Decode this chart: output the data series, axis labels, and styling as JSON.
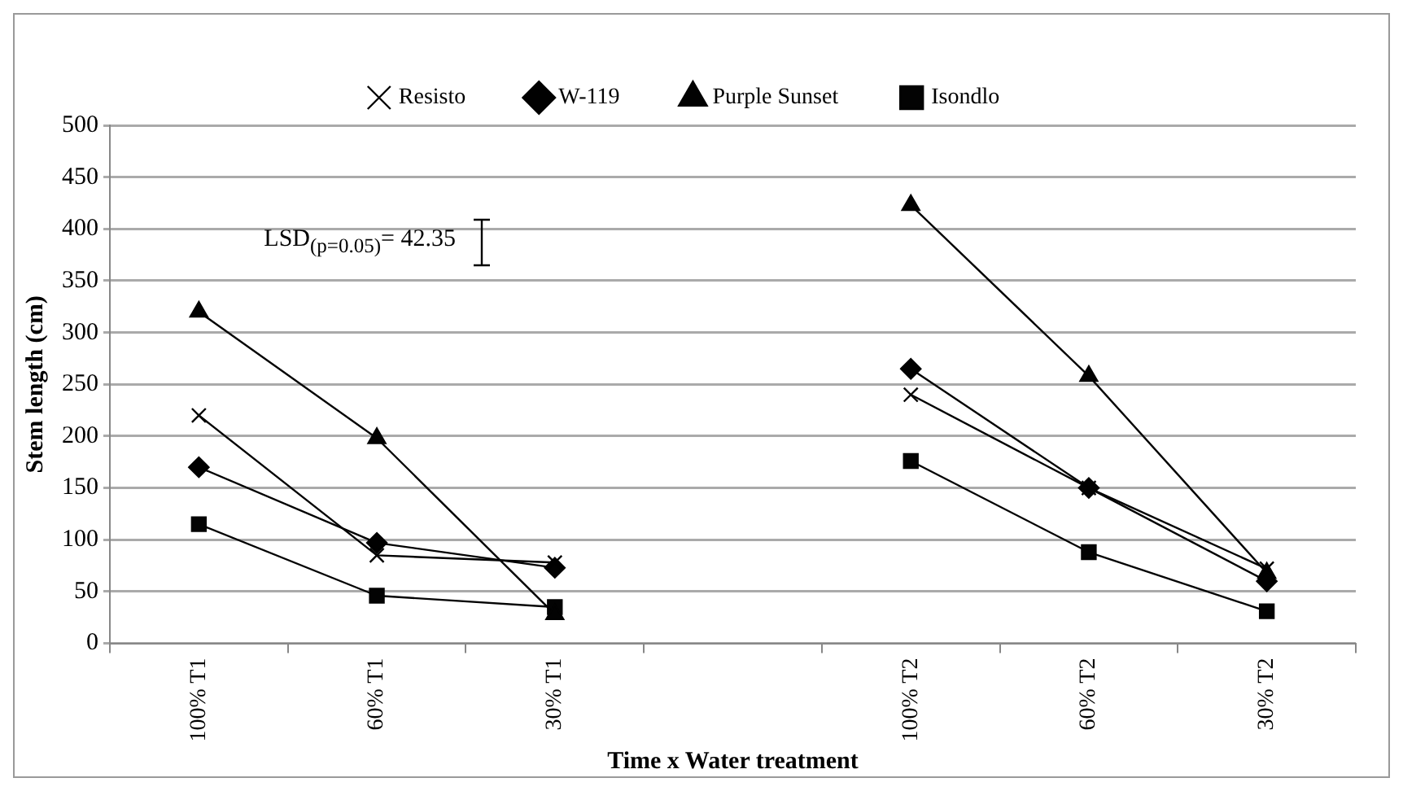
{
  "chart_data": {
    "type": "line",
    "xlabel": "Time x Water treatment",
    "ylabel": "Stem length (cm)",
    "categories": [
      "100% T1",
      "60% T1",
      "30% T1",
      null,
      "100% T2",
      "60% T2",
      "30% T2"
    ],
    "series": [
      {
        "name": "Resisto",
        "color": "#000000",
        "marker": "cross",
        "values": [
          220,
          85,
          78,
          null,
          240,
          150,
          72
        ]
      },
      {
        "name": "W-119",
        "color": "#010101",
        "marker": "diamond",
        "values": [
          170,
          97,
          73,
          null,
          265,
          150,
          60
        ]
      },
      {
        "name": "Purple Sunset",
        "color": "#020202",
        "marker": "triangle",
        "values": [
          320,
          198,
          28,
          null,
          423,
          258,
          68
        ]
      },
      {
        "name": "Isondlo",
        "color": "#030303",
        "marker": "square",
        "values": [
          115,
          46,
          35,
          null,
          176,
          88,
          31
        ]
      }
    ],
    "ylim": [
      0,
      500
    ],
    "yticks": [
      0,
      50,
      100,
      150,
      200,
      250,
      300,
      350,
      400,
      450,
      500
    ],
    "grid": "y",
    "legend": "top",
    "line_style": "solid",
    "annotations": [
      "LSD$_{(p=0.05)}$= 42.35"
    ]
  }
}
